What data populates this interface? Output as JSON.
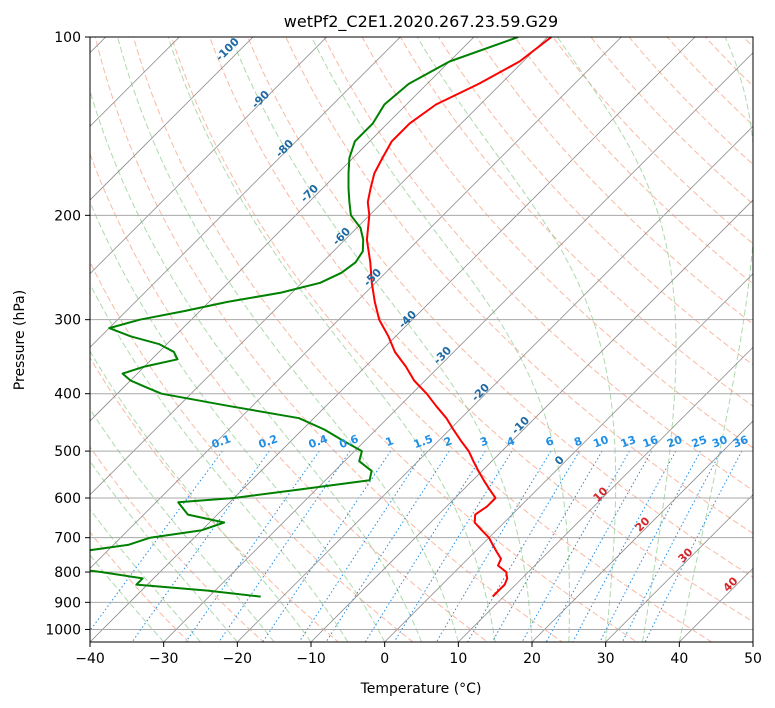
{
  "chart_data": {
    "type": "line",
    "title": "wetPf2_C2E1.2020.267.23.59.G29",
    "xlabel": "Temperature (°C)",
    "ylabel": "Pressure (hPa)",
    "xlim": [
      -40,
      50
    ],
    "ylim": [
      1050,
      100
    ],
    "y_scale": "log",
    "grid": true,
    "x_ticks": [
      "−40",
      "−30",
      "−20",
      "−10",
      "0",
      "10",
      "20",
      "30",
      "40",
      "50"
    ],
    "y_ticks": [
      "100",
      "200",
      "300",
      "400",
      "500",
      "600",
      "700",
      "800",
      "900",
      "1000"
    ],
    "series": [
      {
        "color": "#ff0000",
        "pressure": [
          100,
          110,
          120,
          130,
          140,
          150,
          160,
          170,
          180,
          190,
          200,
          220,
          240,
          260,
          280,
          300,
          320,
          340,
          360,
          380,
          400,
          420,
          440,
          460,
          480,
          500,
          520,
          540,
          560,
          580,
          600,
          620,
          640,
          660,
          680,
          700,
          720,
          740,
          760,
          780,
          800,
          820,
          840,
          860,
          880
        ],
        "temperature": [
          -59.5,
          -60.5,
          -63,
          -66,
          -67,
          -67,
          -66,
          -65,
          -63.5,
          -62,
          -60,
          -57,
          -53.5,
          -50.5,
          -47.5,
          -44.5,
          -41,
          -38,
          -34.5,
          -31.5,
          -28,
          -25,
          -22,
          -19.5,
          -17,
          -14.5,
          -12.5,
          -10.5,
          -8.5,
          -6.5,
          -4.5,
          -4.5,
          -5,
          -4,
          -2,
          0,
          1.5,
          3,
          4.5,
          5,
          7,
          8,
          8.5,
          8.5,
          8.5
        ]
      },
      {
        "color": "#008000",
        "pressure": [
          100,
          110,
          120,
          130,
          140,
          150,
          160,
          170,
          180,
          190,
          200,
          210,
          220,
          230,
          240,
          250,
          260,
          270,
          280,
          290,
          300,
          310,
          320,
          330,
          340,
          350,
          360,
          370,
          380,
          390,
          400,
          420,
          440,
          460,
          480,
          500,
          520,
          540,
          560,
          580,
          600,
          610,
          620,
          640,
          660,
          680,
          700,
          720,
          740,
          760,
          780,
          800,
          820,
          840,
          860,
          880
        ],
        "temperature": [
          -64,
          -70,
          -72.5,
          -73,
          -72,
          -72,
          -70.5,
          -68.5,
          -66.5,
          -64.5,
          -62.5,
          -59.5,
          -57.5,
          -56,
          -55.5,
          -56,
          -57.5,
          -61.5,
          -67.5,
          -72,
          -77,
          -80,
          -76,
          -71,
          -68,
          -66.5,
          -70,
          -72,
          -70,
          -67,
          -64,
          -53,
          -42,
          -37,
          -33,
          -29,
          -28,
          -25,
          -24,
          -32,
          -40,
          -47,
          -46,
          -44,
          -38,
          -40,
          -46,
          -48,
          -54,
          -57,
          -56,
          -48,
          -41.5,
          -41.5,
          -31,
          -23
        ]
      }
    ],
    "isotherm_labels": [
      "-100",
      "-90",
      "-80",
      "-70",
      "-60",
      "-50",
      "-40",
      "-30",
      "-20",
      "-10",
      "0",
      "10",
      "20",
      "30",
      "40"
    ],
    "mixing_ratio_labels": [
      "0.1",
      "0.2",
      "0.4",
      "0.6",
      "1",
      "1.5",
      "2",
      "3",
      "4",
      "6",
      "8",
      "10",
      "13",
      "16",
      "20",
      "25",
      "30",
      "36"
    ],
    "colors": {
      "temperature": "#ff0000",
      "dewpoint": "#008000",
      "isotherm": "#8c8c8c",
      "dry_adiabat": "#f7a183",
      "moist_adiabat": "#8cc98c",
      "mixing_ratio": "#1f8fe6",
      "cold_label": "#1f6aa5",
      "warm_label": "#d62728"
    }
  }
}
